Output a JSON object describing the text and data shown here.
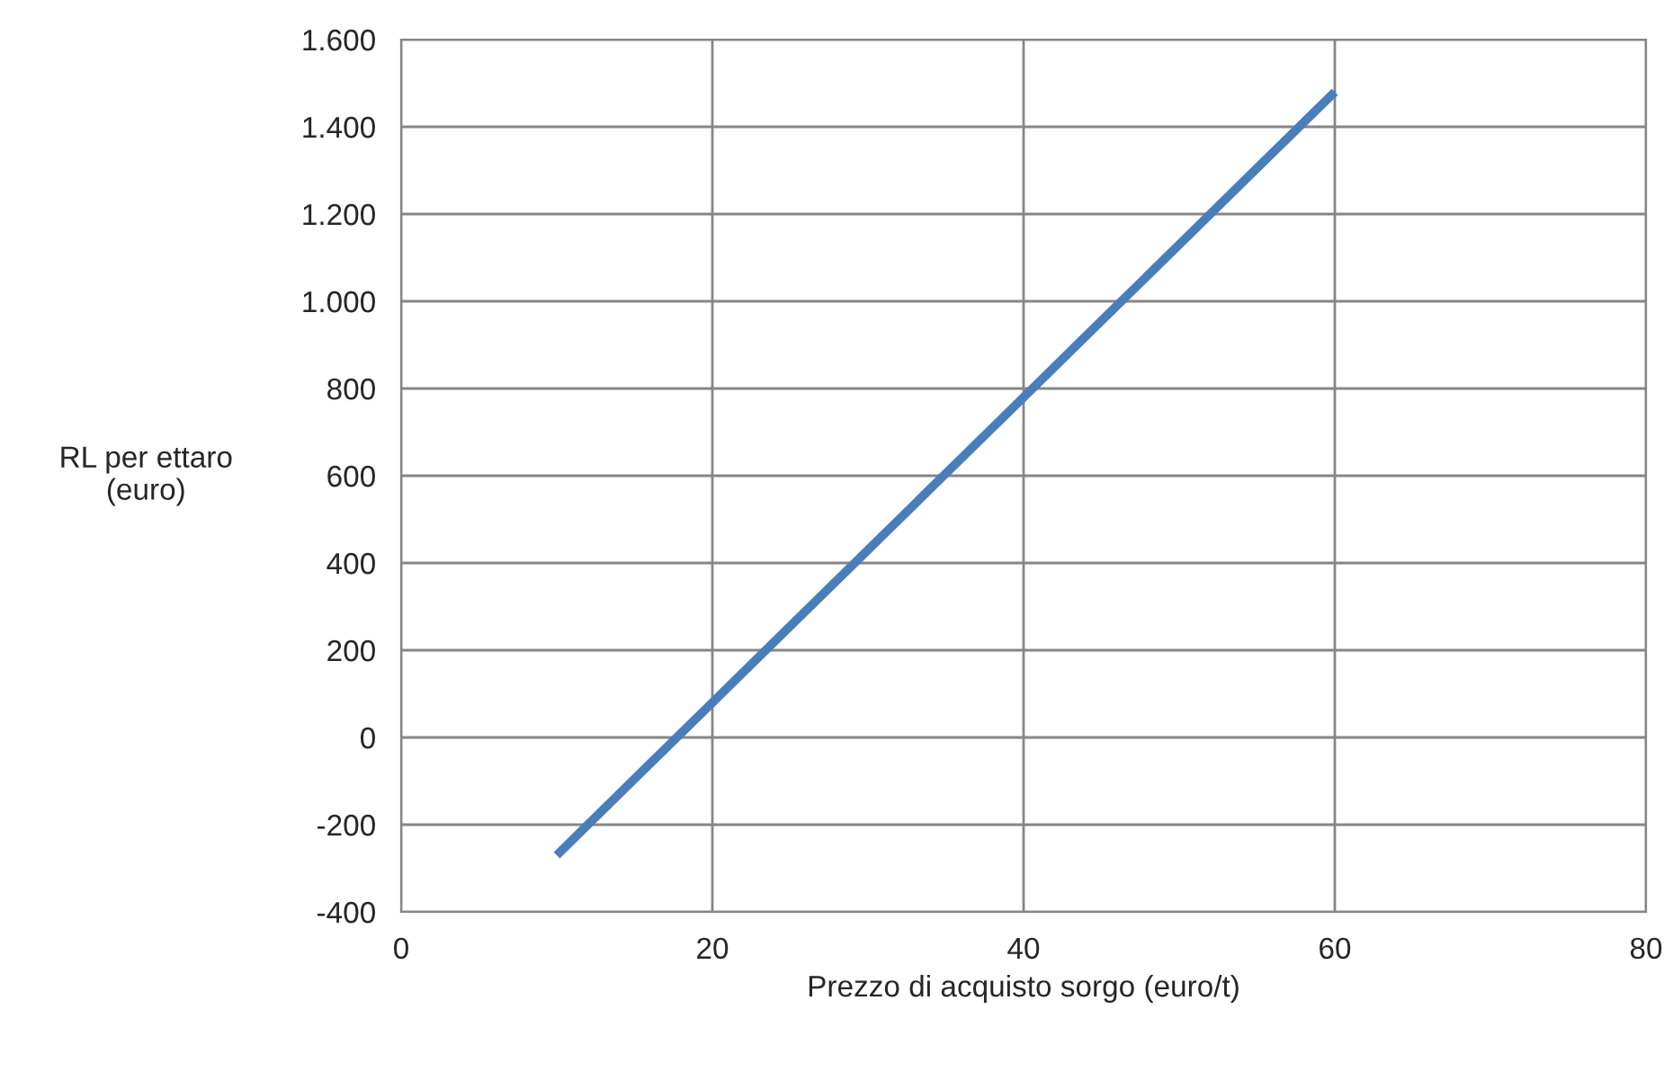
{
  "chart_data": {
    "type": "line",
    "xlabel": "Prezzo di acquisto sorgo (euro/t)",
    "ylabel": "RL per ettaro\n(euro)",
    "x": [
      10,
      15,
      20,
      25,
      30,
      35,
      40,
      45,
      50,
      55,
      60
    ],
    "series": [
      {
        "color": "#4a7ebb",
        "values": [
          -270,
          -95,
          80,
          255,
          430,
          605,
          780,
          955,
          1130,
          1305,
          1480
        ]
      }
    ],
    "xlim": [
      0,
      80
    ],
    "xticks": [
      0,
      20,
      40,
      60,
      80
    ],
    "ylim": [
      -400,
      1600
    ],
    "yticks": [
      -400,
      -200,
      0,
      200,
      400,
      600,
      800,
      {
        "value": 1000,
        "label": "1.000"
      },
      {
        "value": 1200,
        "label": "1.200"
      },
      {
        "value": 1400,
        "label": "1.400"
      },
      {
        "value": 1600,
        "label": "1.600"
      }
    ],
    "grid": true,
    "marker": "none",
    "line_style": "solid",
    "legend": false
  }
}
